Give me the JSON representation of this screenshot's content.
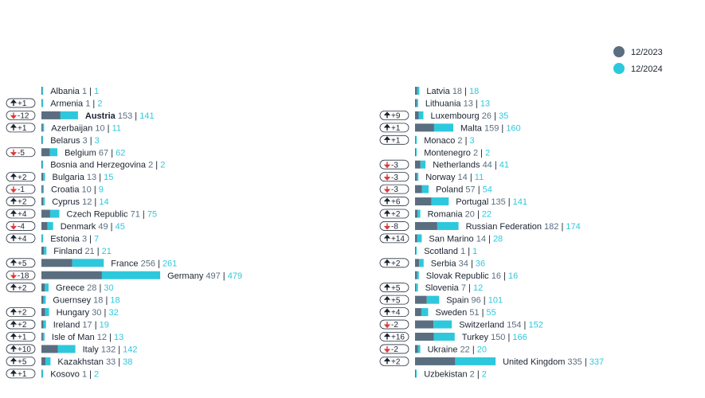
{
  "chart_data": {
    "type": "bar",
    "orientation": "horizontal",
    "series": [
      {
        "name": "12/2023",
        "color": "#5a6e80"
      },
      {
        "name": "12/2024",
        "color": "#2ec8dd"
      }
    ],
    "legend_placement": "top-right",
    "grid": false,
    "change_colors": {
      "up": "#1b2330",
      "down": "#d93a3a"
    },
    "columns": [
      [
        {
          "name": "Albania",
          "v2023": 1,
          "v2024": 1,
          "change": ""
        },
        {
          "name": "Armenia",
          "v2023": 1,
          "v2024": 2,
          "change": "+1"
        },
        {
          "name": "Austria",
          "v2023": 153,
          "v2024": 141,
          "change": "-12",
          "bold": true
        },
        {
          "name": "Azerbaijan",
          "v2023": 10,
          "v2024": 11,
          "change": "+1"
        },
        {
          "name": "Belarus",
          "v2023": 3,
          "v2024": 3,
          "change": ""
        },
        {
          "name": "Belgium",
          "v2023": 67,
          "v2024": 62,
          "change": "-5"
        },
        {
          "name": "Bosnia and Herzegovina",
          "v2023": 2,
          "v2024": 2,
          "change": ""
        },
        {
          "name": "Bulgaria",
          "v2023": 13,
          "v2024": 15,
          "change": "+2"
        },
        {
          "name": "Croatia",
          "v2023": 10,
          "v2024": 9,
          "change": "-1"
        },
        {
          "name": "Cyprus",
          "v2023": 12,
          "v2024": 14,
          "change": "+2"
        },
        {
          "name": "Czech Republic",
          "v2023": 71,
          "v2024": 75,
          "change": "+4"
        },
        {
          "name": "Denmark",
          "v2023": 49,
          "v2024": 45,
          "change": "-4"
        },
        {
          "name": "Estonia",
          "v2023": 3,
          "v2024": 7,
          "change": "+4"
        },
        {
          "name": "Finland",
          "v2023": 21,
          "v2024": 21,
          "change": ""
        },
        {
          "name": "France",
          "v2023": 256,
          "v2024": 261,
          "change": "+5"
        },
        {
          "name": "Germany",
          "v2023": 497,
          "v2024": 479,
          "change": "-18"
        },
        {
          "name": "Greece",
          "v2023": 28,
          "v2024": 30,
          "change": "+2"
        },
        {
          "name": "Guernsey",
          "v2023": 18,
          "v2024": 18,
          "change": ""
        },
        {
          "name": "Hungary",
          "v2023": 30,
          "v2024": 32,
          "change": "+2"
        },
        {
          "name": "Ireland",
          "v2023": 17,
          "v2024": 19,
          "change": "+2"
        },
        {
          "name": "Isle of Man",
          "v2023": 12,
          "v2024": 13,
          "change": "+1"
        },
        {
          "name": "Italy",
          "v2023": 132,
          "v2024": 142,
          "change": "+10"
        },
        {
          "name": "Kazakhstan",
          "v2023": 33,
          "v2024": 38,
          "change": "+5"
        },
        {
          "name": "Kosovo",
          "v2023": 1,
          "v2024": 2,
          "change": "+1"
        }
      ],
      [
        {
          "name": "Latvia",
          "v2023": 18,
          "v2024": 18,
          "change": ""
        },
        {
          "name": "Lithuania",
          "v2023": 13,
          "v2024": 13,
          "change": ""
        },
        {
          "name": "Luxembourg",
          "v2023": 26,
          "v2024": 35,
          "change": "+9"
        },
        {
          "name": "Malta",
          "v2023": 159,
          "v2024": 160,
          "change": "+1"
        },
        {
          "name": "Monaco",
          "v2023": 2,
          "v2024": 3,
          "change": "+1"
        },
        {
          "name": "Montenegro",
          "v2023": 2,
          "v2024": 2,
          "change": ""
        },
        {
          "name": "Netherlands",
          "v2023": 44,
          "v2024": 41,
          "change": "-3"
        },
        {
          "name": "Norway",
          "v2023": 14,
          "v2024": 11,
          "change": "-3"
        },
        {
          "name": "Poland",
          "v2023": 57,
          "v2024": 54,
          "change": "-3"
        },
        {
          "name": "Portugal",
          "v2023": 135,
          "v2024": 141,
          "change": "+6"
        },
        {
          "name": "Romania",
          "v2023": 20,
          "v2024": 22,
          "change": "+2"
        },
        {
          "name": "Russian Federation",
          "v2023": 182,
          "v2024": 174,
          "change": "-8"
        },
        {
          "name": "San Marino",
          "v2023": 14,
          "v2024": 28,
          "change": "+14"
        },
        {
          "name": "Scotland",
          "v2023": 1,
          "v2024": 1,
          "change": ""
        },
        {
          "name": "Serbia",
          "v2023": 34,
          "v2024": 36,
          "change": "+2"
        },
        {
          "name": "Slovak Republic",
          "v2023": 16,
          "v2024": 16,
          "change": ""
        },
        {
          "name": "Slovenia",
          "v2023": 7,
          "v2024": 12,
          "change": "+5"
        },
        {
          "name": "Spain",
          "v2023": 96,
          "v2024": 101,
          "change": "+5"
        },
        {
          "name": "Sweden",
          "v2023": 51,
          "v2024": 55,
          "change": "+4"
        },
        {
          "name": "Switzerland",
          "v2023": 154,
          "v2024": 152,
          "change": "-2"
        },
        {
          "name": "Turkey",
          "v2023": 150,
          "v2024": 166,
          "change": "+16"
        },
        {
          "name": "Ukraine",
          "v2023": 22,
          "v2024": 20,
          "change": "-2"
        },
        {
          "name": "United Kingdom",
          "v2023": 335,
          "v2024": 337,
          "change": "+2"
        },
        {
          "name": "Uzbekistan",
          "v2023": 2,
          "v2024": 2,
          "change": ""
        }
      ]
    ]
  }
}
